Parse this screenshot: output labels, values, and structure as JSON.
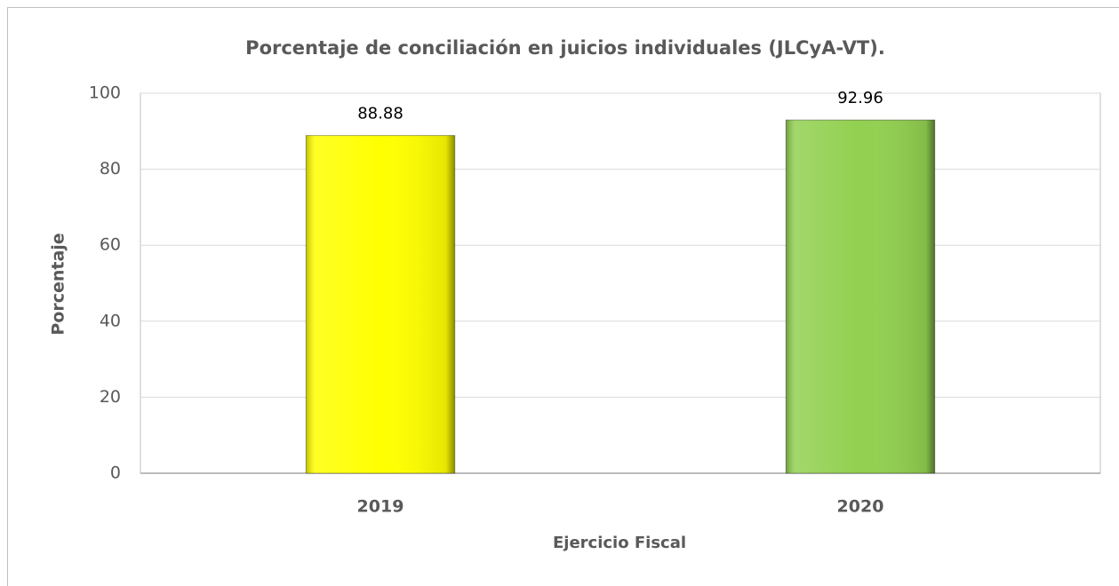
{
  "chart_data": {
    "type": "bar",
    "title": "Porcentaje de conciliación en juicios individuales (JLCyA-VT).",
    "x_label": "Ejercicio Fiscal",
    "y_label": "Porcentaje",
    "categories": [
      "2019",
      "2020"
    ],
    "values": [
      88.88,
      92.96
    ],
    "colors": [
      "#ffff00",
      "#92d050"
    ],
    "ylim": [
      0,
      100
    ],
    "yticks": [
      0,
      20,
      40,
      60,
      80,
      100
    ],
    "grid": true
  }
}
